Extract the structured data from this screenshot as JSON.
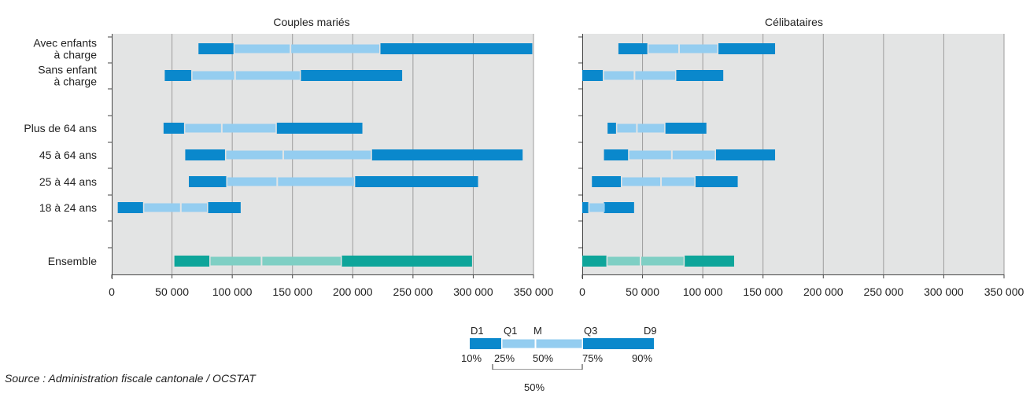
{
  "chart_data": [
    {
      "type": "bar",
      "subtype": "quantile-range",
      "title": "Couples mariés",
      "categories": [
        "Avec enfants à charge",
        "Sans enfant à charge",
        "Plus de 64 ans",
        "45 à 64 ans",
        "25 à 44 ans",
        "18 à 24 ans",
        "Ensemble"
      ],
      "category_lines": [
        [
          "Avec enfants",
          "à charge"
        ],
        [
          "Sans enfant",
          "à charge"
        ],
        [
          "Plus de 64 ans"
        ],
        [
          "45 à 64 ans"
        ],
        [
          "25 à 44 ans"
        ],
        [
          "18 à 24 ans"
        ],
        [
          "Ensemble"
        ]
      ],
      "series": [
        {
          "name": "D1",
          "values": [
            72000,
            44000,
            43000,
            61000,
            64000,
            5000,
            52000
          ]
        },
        {
          "name": "Q1",
          "values": [
            101000,
            66000,
            60000,
            94000,
            95000,
            26000,
            81000
          ]
        },
        {
          "name": "M",
          "values": [
            148000,
            102000,
            91000,
            142000,
            137000,
            57000,
            124000
          ]
        },
        {
          "name": "Q3",
          "values": [
            223000,
            157000,
            137000,
            216000,
            202000,
            80000,
            191000
          ]
        },
        {
          "name": "D9",
          "values": [
            349000,
            241000,
            208000,
            341000,
            304000,
            107000,
            299000
          ]
        }
      ],
      "xlim": [
        0,
        350000
      ],
      "xticks": [
        0,
        50000,
        100000,
        150000,
        200000,
        250000,
        300000,
        350000
      ],
      "xtick_labels": [
        "0",
        "50 000",
        "100 000",
        "150 000",
        "200 000",
        "250 000",
        "300 000",
        "350 000"
      ],
      "grid": true
    },
    {
      "type": "bar",
      "subtype": "quantile-range",
      "title": "Célibataires",
      "categories": [
        "Avec enfants à charge",
        "Sans enfant à charge",
        "Plus de 64 ans",
        "45 à 64 ans",
        "25 à 44 ans",
        "18 à 24 ans",
        "Ensemble"
      ],
      "series": [
        {
          "name": "D1",
          "values": [
            30000,
            0,
            21000,
            18000,
            8000,
            0,
            0
          ]
        },
        {
          "name": "Q1",
          "values": [
            54000,
            17000,
            28000,
            38000,
            32000,
            5000,
            20000
          ]
        },
        {
          "name": "M",
          "values": [
            80000,
            43000,
            45000,
            74000,
            65000,
            19000,
            48000
          ]
        },
        {
          "name": "Q3",
          "values": [
            113000,
            78000,
            69000,
            111000,
            94000,
            18000,
            85000
          ]
        },
        {
          "name": "D9",
          "values": [
            160000,
            117000,
            103000,
            160000,
            129000,
            43000,
            126000
          ]
        }
      ],
      "xlim": [
        0,
        350000
      ],
      "xticks": [
        0,
        50000,
        100000,
        150000,
        200000,
        250000,
        300000,
        350000
      ],
      "xtick_labels": [
        "0",
        "50 000",
        "100 000",
        "150 000",
        "200 000",
        "250 000",
        "300 000",
        "350 000"
      ],
      "grid": true
    }
  ],
  "legend": {
    "labels": [
      "D1",
      "Q1",
      "M",
      "Q3",
      "D9"
    ],
    "percents": [
      "10%",
      "25%",
      "50%",
      "75%",
      "90%"
    ],
    "span_label": "50%"
  },
  "source": "Source : Administration fiscale cantonale / OCSTAT",
  "colors": {
    "dark_blue": "#0a88cc",
    "light_blue": "#94cdf0",
    "dark_teal": "#0ea59a",
    "light_teal": "#7fcfc4",
    "plot_bg": "#e3e4e4",
    "grid": "#9d9d9d"
  }
}
